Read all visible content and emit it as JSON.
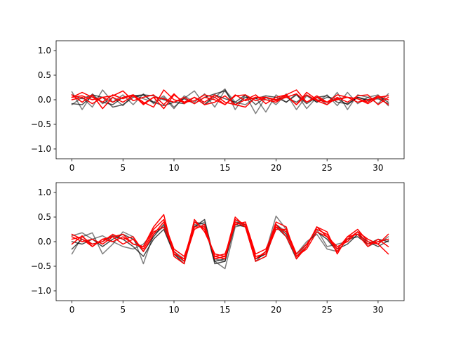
{
  "chart_data": [
    {
      "type": "line",
      "title": "",
      "xlabel": "",
      "ylabel": "",
      "xlim": [
        -1.55,
        32.55
      ],
      "ylim": [
        -1.2,
        1.2
      ],
      "xticks": [
        0,
        5,
        10,
        15,
        20,
        25,
        30
      ],
      "yticks": [
        -1.0,
        -0.5,
        0.0,
        0.5,
        1.0
      ],
      "xtick_labels": [
        "0",
        "5",
        "10",
        "15",
        "20",
        "25",
        "30"
      ],
      "ytick_labels": [
        "−1.0",
        "−0.5",
        "0.0",
        "0.5",
        "1.0"
      ],
      "grid": false,
      "x": [
        0,
        1,
        2,
        3,
        4,
        5,
        6,
        7,
        8,
        9,
        10,
        11,
        12,
        13,
        14,
        15,
        16,
        17,
        18,
        19,
        20,
        21,
        22,
        23,
        24,
        25,
        26,
        27,
        28,
        29,
        30,
        31
      ],
      "series": [
        {
          "color": "#000000",
          "alpha": 0.5,
          "values": [
            0.16,
            -0.2,
            0.12,
            -0.08,
            0.05,
            -0.12,
            0.1,
            0.02,
            -0.05,
            0.08,
            -0.15,
            0.03,
            0.18,
            -0.1,
            0.05,
            0.22,
            -0.2,
            0.1,
            -0.28,
            0.05,
            -0.1,
            0.12,
            -0.2,
            0.08,
            -0.05,
            0.1,
            -0.12,
            0.15,
            -0.08,
            0.05,
            0.1,
            -0.12
          ]
        },
        {
          "color": "#000000",
          "alpha": 0.5,
          "values": [
            -0.1,
            0.05,
            -0.15,
            0.2,
            -0.05,
            0.1,
            -0.1,
            0.12,
            -0.08,
            0.05,
            -0.18,
            0.08,
            -0.05,
            0.12,
            -0.15,
            0.2,
            -0.05,
            -0.1,
            0.05,
            -0.25,
            0.1,
            -0.05,
            0.12,
            -0.18,
            0.05,
            -0.1,
            0.15,
            -0.2,
            0.1,
            0.05,
            -0.08,
            0.12
          ]
        },
        {
          "color": "#000000",
          "alpha": 0.65,
          "values": [
            -0.08,
            -0.1,
            0.08,
            -0.05,
            -0.1,
            0.05,
            0.08,
            0.1,
            -0.05,
            -0.12,
            -0.05,
            0.02,
            -0.08,
            0.05,
            0.12,
            0.18,
            -0.1,
            0.05,
            0.02,
            0.08,
            0.05,
            -0.05,
            0.1,
            -0.08,
            0.05,
            0.08,
            -0.05,
            -0.08,
            0.05,
            -0.02,
            0.08,
            -0.05
          ]
        },
        {
          "color": "#000000",
          "alpha": 0.65,
          "values": [
            0.1,
            0.02,
            0.1,
            0.05,
            -0.15,
            -0.1,
            0.05,
            0.1,
            0.08,
            0.0,
            -0.05,
            -0.08,
            0.05,
            -0.1,
            0.1,
            0.02,
            -0.05,
            0.1,
            -0.1,
            0.05,
            0.0,
            0.05,
            -0.05,
            0.1,
            -0.05,
            0.05,
            0.02,
            -0.1,
            0.05,
            0.0,
            0.02,
            -0.08
          ]
        },
        {
          "color": "#ff0000",
          "alpha": 1,
          "values": [
            0.05,
            0.15,
            0.05,
            -0.05,
            0.1,
            0.02,
            0.1,
            -0.05,
            -0.15,
            0.2,
            0.0,
            -0.05,
            -0.02,
            0.1,
            0.05,
            -0.1,
            0.08,
            0.1,
            -0.02,
            0.05,
            0.0,
            0.1,
            0.2,
            -0.05,
            0.05,
            -0.05,
            0.02,
            0.05,
            -0.05,
            0.0,
            0.05,
            0.08
          ]
        },
        {
          "color": "#ff0000",
          "alpha": 1,
          "values": [
            0.0,
            0.05,
            -0.08,
            0.05,
            0.08,
            0.18,
            -0.02,
            0.05,
            0.1,
            -0.1,
            0.12,
            -0.08,
            0.05,
            -0.05,
            0.1,
            -0.05,
            -0.1,
            0.0,
            0.1,
            -0.08,
            0.05,
            0.1,
            -0.1,
            0.15,
            0.0,
            -0.05,
            0.1,
            0.05,
            0.02,
            -0.05,
            0.08,
            0.0
          ]
        },
        {
          "color": "#ff0000",
          "alpha": 1,
          "values": [
            0.1,
            -0.05,
            0.1,
            -0.18,
            0.05,
            -0.05,
            0.08,
            -0.08,
            0.05,
            -0.18,
            0.1,
            -0.05,
            0.05,
            -0.1,
            -0.05,
            0.08,
            -0.1,
            -0.15,
            0.05,
            0.0,
            -0.05,
            0.08,
            -0.1,
            0.1,
            -0.02,
            -0.1,
            0.05,
            -0.05,
            0.08,
            0.1,
            -0.1,
            0.05
          ]
        },
        {
          "color": "#ff0000",
          "alpha": 1,
          "values": [
            0.05,
            0.08,
            0.0,
            0.05,
            -0.05,
            0.05,
            0.1,
            -0.1,
            0.05,
            0.02,
            -0.05,
            0.05,
            -0.08,
            0.05,
            0.0,
            -0.1,
            0.1,
            -0.02,
            0.05,
            0.05,
            -0.02,
            0.05,
            0.12,
            -0.05,
            0.08,
            -0.05,
            0.0,
            0.05,
            0.02,
            -0.08,
            0.05,
            -0.1
          ]
        }
      ]
    },
    {
      "type": "line",
      "title": "",
      "xlabel": "",
      "ylabel": "",
      "xlim": [
        -1.55,
        32.55
      ],
      "ylim": [
        -1.2,
        1.2
      ],
      "xticks": [
        0,
        5,
        10,
        15,
        20,
        25,
        30
      ],
      "yticks": [
        -1.0,
        -0.5,
        0.0,
        0.5,
        1.0
      ],
      "xtick_labels": [
        "0",
        "5",
        "10",
        "15",
        "20",
        "25",
        "30"
      ],
      "ytick_labels": [
        "−1.0",
        "−0.5",
        "0.0",
        "0.5",
        "1.0"
      ],
      "grid": false,
      "x": [
        0,
        1,
        2,
        3,
        4,
        5,
        6,
        7,
        8,
        9,
        10,
        11,
        12,
        13,
        14,
        15,
        16,
        17,
        18,
        19,
        20,
        21,
        22,
        23,
        24,
        25,
        26,
        27,
        28,
        29,
        30,
        31
      ],
      "series": [
        {
          "color": "#000000",
          "alpha": 0.5,
          "values": [
            -0.25,
            0.1,
            0.18,
            -0.25,
            -0.05,
            0.2,
            0.1,
            -0.45,
            0.15,
            0.3,
            -0.2,
            -0.35,
            0.3,
            0.4,
            -0.4,
            -0.55,
            0.3,
            0.35,
            -0.4,
            -0.2,
            0.52,
            0.25,
            -0.3,
            -0.05,
            0.25,
            -0.1,
            -0.05,
            0.0,
            0.2,
            -0.1,
            0.0,
            0.05
          ]
        },
        {
          "color": "#000000",
          "alpha": 0.5,
          "values": [
            0.12,
            0.18,
            0.05,
            0.12,
            0.0,
            -0.1,
            -0.15,
            -0.05,
            0.2,
            0.3,
            -0.25,
            -0.4,
            0.35,
            0.3,
            -0.35,
            -0.4,
            0.45,
            0.3,
            -0.35,
            -0.25,
            0.35,
            0.2,
            -0.25,
            0.0,
            0.15,
            -0.15,
            -0.2,
            0.05,
            0.2,
            0.05,
            -0.05,
            0.1
          ]
        },
        {
          "color": "#000000",
          "alpha": 0.7,
          "values": [
            0.0,
            -0.05,
            0.05,
            -0.1,
            0.05,
            0.15,
            0.05,
            -0.2,
            0.1,
            0.35,
            -0.2,
            -0.4,
            0.4,
            0.35,
            -0.45,
            -0.4,
            0.35,
            0.3,
            -0.4,
            -0.3,
            0.3,
            0.1,
            -0.35,
            -0.1,
            0.3,
            0.1,
            -0.15,
            -0.05,
            0.15,
            0.0,
            -0.1,
            0.02
          ]
        },
        {
          "color": "#000000",
          "alpha": 0.7,
          "values": [
            -0.15,
            0.05,
            -0.05,
            0.0,
            0.12,
            0.05,
            -0.1,
            -0.3,
            0.05,
            0.25,
            -0.25,
            -0.45,
            0.3,
            0.45,
            -0.4,
            -0.35,
            0.4,
            0.35,
            -0.35,
            -0.25,
            0.35,
            0.15,
            -0.25,
            -0.05,
            0.2,
            0.05,
            -0.2,
            0.05,
            0.1,
            -0.05,
            0.05,
            0.0
          ]
        },
        {
          "color": "#ff0000",
          "alpha": 1,
          "values": [
            0.15,
            0.05,
            -0.1,
            0.05,
            0.0,
            0.1,
            -0.05,
            -0.1,
            0.3,
            0.55,
            -0.3,
            -0.45,
            0.45,
            0.2,
            -0.25,
            -0.3,
            0.5,
            0.3,
            -0.35,
            -0.2,
            0.4,
            0.3,
            -0.35,
            -0.1,
            0.3,
            0.2,
            -0.25,
            0.1,
            0.25,
            0.0,
            -0.05,
            0.15
          ]
        },
        {
          "color": "#ff0000",
          "alpha": 1,
          "values": [
            0.05,
            0.1,
            -0.05,
            0.0,
            0.15,
            0.05,
            0.1,
            -0.2,
            0.15,
            0.4,
            -0.15,
            -0.3,
            0.3,
            0.3,
            -0.3,
            -0.25,
            0.35,
            0.4,
            -0.25,
            -0.15,
            0.3,
            0.2,
            -0.3,
            -0.15,
            0.2,
            0.1,
            -0.2,
            0.05,
            0.2,
            -0.05,
            0.0,
            0.05
          ]
        },
        {
          "color": "#ff0000",
          "alpha": 1,
          "values": [
            -0.05,
            0.12,
            -0.1,
            0.05,
            0.1,
            -0.05,
            0.05,
            -0.15,
            0.2,
            0.3,
            -0.2,
            -0.4,
            0.25,
            0.35,
            -0.35,
            -0.3,
            0.45,
            0.35,
            -0.3,
            -0.25,
            0.25,
            0.25,
            -0.25,
            -0.05,
            0.25,
            0.15,
            -0.15,
            0.1,
            0.15,
            -0.1,
            0.05,
            -0.1
          ]
        },
        {
          "color": "#ff0000",
          "alpha": 1,
          "values": [
            0.1,
            0.0,
            0.05,
            -0.05,
            0.1,
            0.15,
            -0.05,
            -0.1,
            0.25,
            0.45,
            -0.25,
            -0.35,
            0.4,
            0.25,
            -0.3,
            -0.35,
            0.4,
            0.3,
            -0.4,
            -0.3,
            0.35,
            0.1,
            -0.3,
            -0.1,
            0.3,
            0.1,
            -0.1,
            0.0,
            0.2,
            0.05,
            -0.05,
            -0.25
          ]
        }
      ]
    }
  ]
}
